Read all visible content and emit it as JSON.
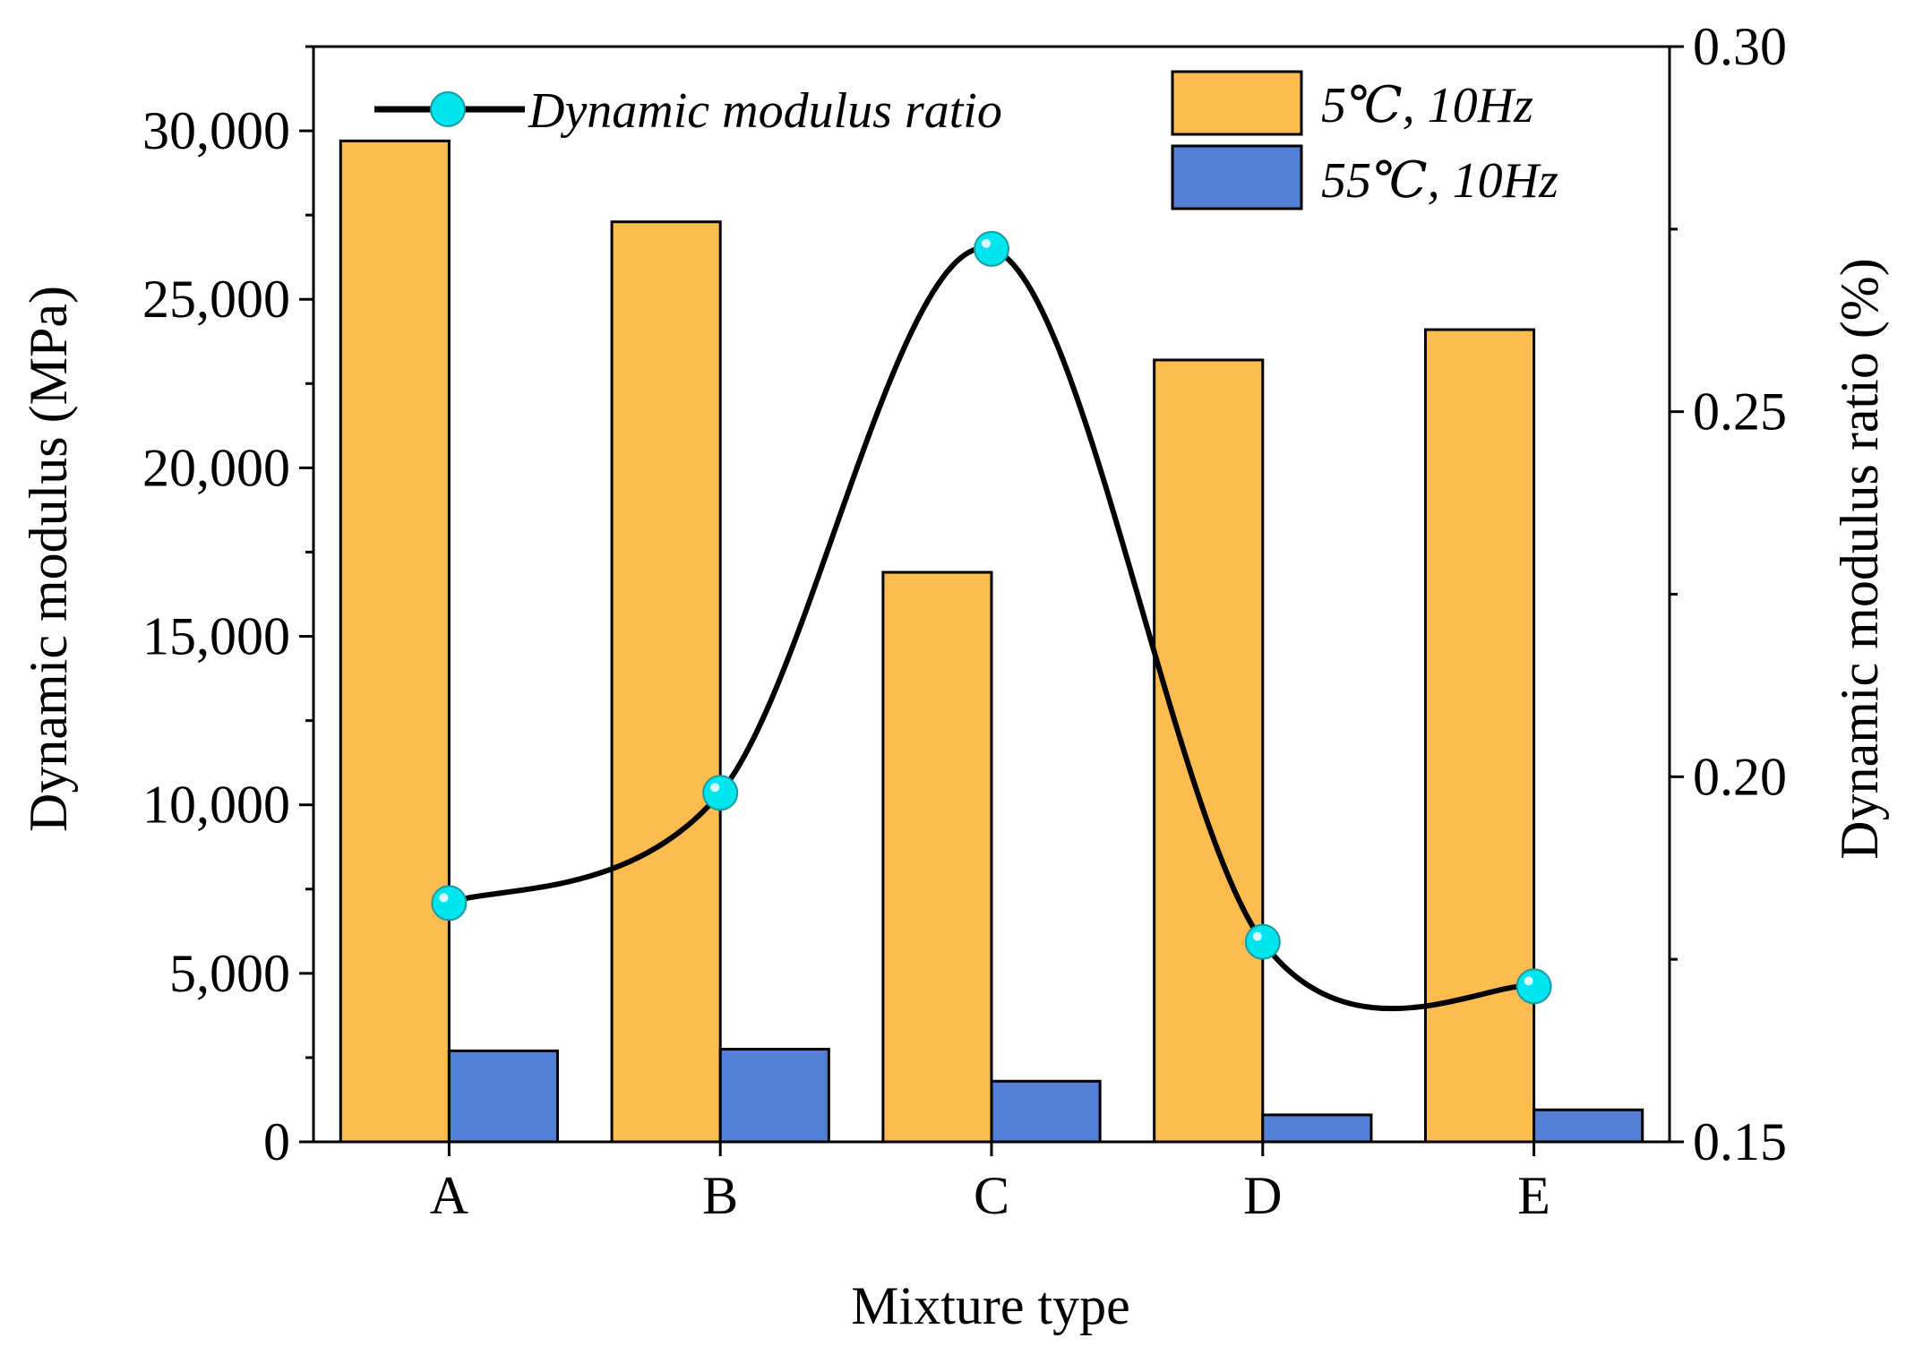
{
  "chart_data": {
    "type": "bar+line",
    "xlabel": "Mixture type",
    "ylabel_left": "Dynamic modulus (MPa)",
    "ylabel_right": "Dynamic modulus ratio (%)",
    "categories": [
      "A",
      "B",
      "C",
      "D",
      "E"
    ],
    "ylim_left": [
      0,
      32500
    ],
    "yticks_left": [
      "0",
      "5,000",
      "10,000",
      "15,000",
      "20,000",
      "25,000",
      "30,000"
    ],
    "ylim_right": [
      0.15,
      0.3
    ],
    "yticks_right": [
      "0.15",
      "0.20",
      "0.25",
      "0.30"
    ],
    "grid": false,
    "legend_placement": "top",
    "series": [
      {
        "name": "5℃, 10Hz",
        "kind": "bar",
        "axis": "left",
        "color": "#FDBC50",
        "values": [
          29700,
          27300,
          16900,
          23200,
          24100
        ]
      },
      {
        "name": "55℃, 10Hz",
        "kind": "bar",
        "axis": "left",
        "color": "#5380D4",
        "values": [
          2700,
          2750,
          1800,
          800,
          950
        ]
      },
      {
        "name": "Dynamic modulus ratio",
        "kind": "line",
        "axis": "right",
        "color": "#000000",
        "marker_color": "#00E5EE",
        "values": [
          0.1827,
          0.1978,
          0.2723,
          0.1774,
          0.1713
        ]
      }
    ]
  }
}
